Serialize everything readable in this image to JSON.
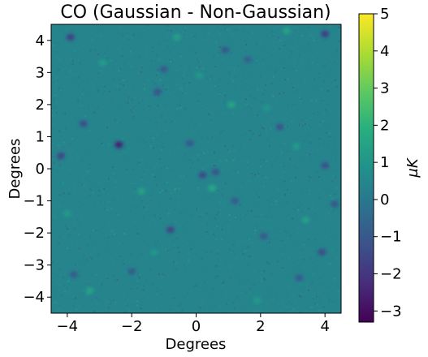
{
  "chart_data": {
    "type": "heatmap",
    "title": "CO (Gaussian - Non-Gaussian)",
    "xlabel": "Degrees",
    "ylabel": "Degrees",
    "xlim": [
      -4.5,
      4.5
    ],
    "ylim": [
      -4.5,
      4.5
    ],
    "xticks": [
      -4,
      -2,
      0,
      2,
      4
    ],
    "yticks": [
      -4,
      -3,
      -2,
      -1,
      0,
      1,
      2,
      3,
      4
    ],
    "xtick_labels": [
      "−4",
      "−2",
      "0",
      "2",
      "4"
    ],
    "ytick_labels": [
      "−4",
      "−3",
      "−2",
      "−1",
      "0",
      "1",
      "2",
      "3",
      "4"
    ],
    "colorbar": {
      "label": "μK",
      "vmin": -3.3,
      "vmax": 5,
      "colormap": "viridis",
      "ticks": [
        -3,
        -2,
        -1,
        0,
        1,
        2,
        3,
        4,
        5
      ],
      "tick_labels": [
        "−3",
        "−2",
        "−1",
        "0",
        "1",
        "2",
        "3",
        "4",
        "5"
      ]
    },
    "background_value": 0.4,
    "features": [
      {
        "x": -3.9,
        "y": 4.1,
        "value": -1.8
      },
      {
        "x": -2.4,
        "y": 0.75,
        "value": -2.6
      },
      {
        "x": -4.2,
        "y": 0.4,
        "value": -1.6
      },
      {
        "x": -3.5,
        "y": 1.4,
        "value": -1.4
      },
      {
        "x": -1.2,
        "y": 2.4,
        "value": -1.2
      },
      {
        "x": -0.2,
        "y": 0.8,
        "value": -1.0
      },
      {
        "x": 0.2,
        "y": -0.2,
        "value": -1.5
      },
      {
        "x": 0.6,
        "y": -0.1,
        "value": -1.2
      },
      {
        "x": 1.2,
        "y": -1.0,
        "value": -1.0
      },
      {
        "x": -0.8,
        "y": -1.9,
        "value": -1.6
      },
      {
        "x": 2.1,
        "y": -2.1,
        "value": -1.0
      },
      {
        "x": 3.2,
        "y": -3.4,
        "value": -1.0
      },
      {
        "x": 4.0,
        "y": 0.1,
        "value": -1.3
      },
      {
        "x": 4.0,
        "y": 4.2,
        "value": -1.9
      },
      {
        "x": 2.6,
        "y": 1.3,
        "value": -1.2
      },
      {
        "x": 0.9,
        "y": 3.7,
        "value": -1.1
      },
      {
        "x": 3.9,
        "y": -2.6,
        "value": -1.4
      },
      {
        "x": 4.3,
        "y": -1.1,
        "value": -1.1
      },
      {
        "x": -3.8,
        "y": -3.3,
        "value": -0.9
      },
      {
        "x": -1.0,
        "y": 3.1,
        "value": -1.0
      },
      {
        "x": 1.6,
        "y": 3.4,
        "value": -0.8
      },
      {
        "x": -2.0,
        "y": -3.2,
        "value": -0.9
      },
      {
        "x": 0.5,
        "y": -0.6,
        "value": 1.7
      },
      {
        "x": -1.7,
        "y": -0.7,
        "value": 1.5
      },
      {
        "x": 1.1,
        "y": 2.0,
        "value": 1.6
      },
      {
        "x": -3.3,
        "y": -3.8,
        "value": 1.5
      },
      {
        "x": 3.4,
        "y": -1.6,
        "value": 1.4
      },
      {
        "x": 2.8,
        "y": 4.3,
        "value": 1.5
      },
      {
        "x": -0.6,
        "y": 4.1,
        "value": 1.4
      },
      {
        "x": -2.9,
        "y": 3.3,
        "value": 1.3
      },
      {
        "x": 1.9,
        "y": -4.1,
        "value": 1.2
      },
      {
        "x": -4.0,
        "y": -1.4,
        "value": 1.2
      },
      {
        "x": 3.1,
        "y": 0.7,
        "value": 1.2
      },
      {
        "x": -1.3,
        "y": -2.6,
        "value": 1.1
      },
      {
        "x": 0.1,
        "y": 2.9,
        "value": 1.1
      },
      {
        "x": 2.2,
        "y": 1.9,
        "value": 1.0
      }
    ]
  }
}
